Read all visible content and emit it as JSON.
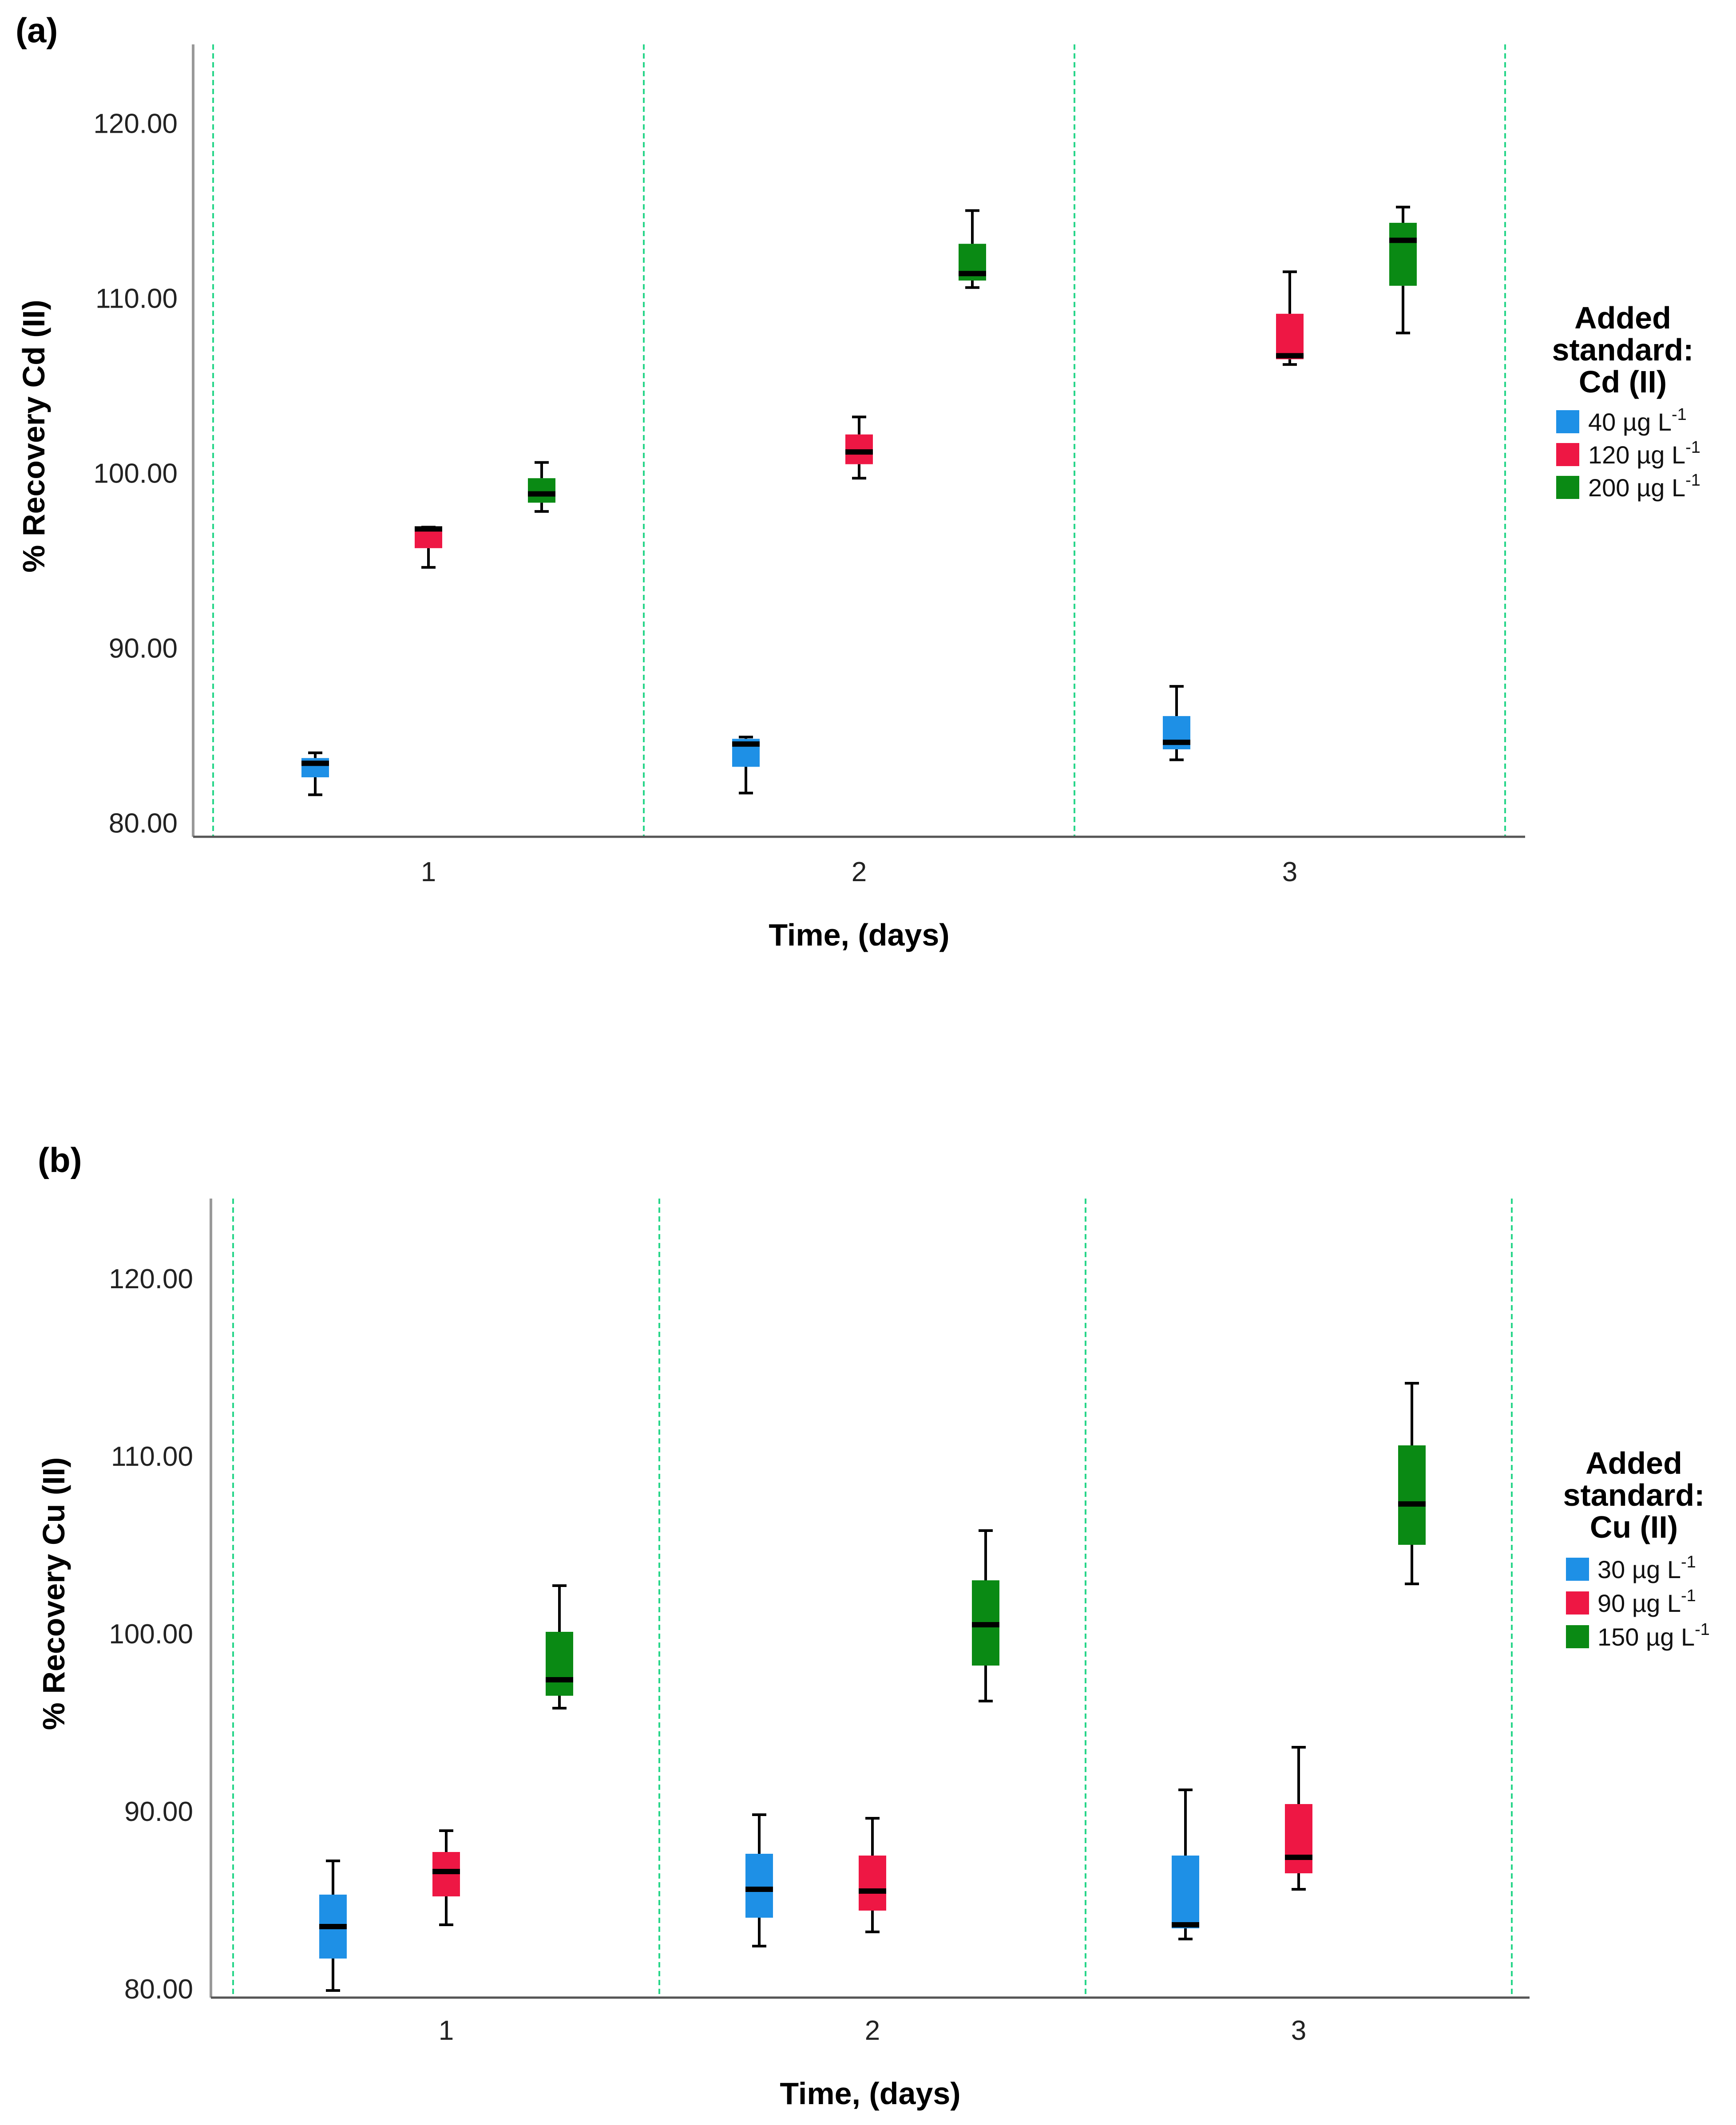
{
  "chart_data": [
    {
      "id": "a",
      "type": "boxplot",
      "panel_label": "(a)",
      "ylabel": "% Recovery Cd (II)",
      "xlabel": "Time, (days)",
      "ylim": [
        79.2,
        124.5
      ],
      "yticks": [
        80,
        90,
        100,
        110,
        120
      ],
      "ytick_labels": [
        "80.00",
        "90.00",
        "100.00",
        "110.00",
        "120.00"
      ],
      "categories": [
        "1",
        "2",
        "3"
      ],
      "legend": {
        "title_lines": [
          "Added",
          "standard:",
          "Cd (II)"
        ],
        "entries": [
          {
            "label": "40 µg L",
            "sup": "-1",
            "color": "#1e90e6"
          },
          {
            "label": "120 µg L",
            "sup": "-1",
            "color": "#ee1744"
          },
          {
            "label": "200 µg L",
            "sup": "-1",
            "color": "#0a8a14"
          }
        ]
      },
      "series": [
        {
          "name": "40 µg L-1",
          "color": "#1e90e6",
          "boxes": [
            {
              "min": 81.6,
              "q1": 82.6,
              "median": 83.4,
              "q3": 83.7,
              "max": 84.0
            },
            {
              "min": 81.7,
              "q1": 83.2,
              "median": 84.5,
              "q3": 84.8,
              "max": 84.9
            },
            {
              "min": 83.6,
              "q1": 84.2,
              "median": 84.6,
              "q3": 86.1,
              "max": 87.8
            }
          ]
        },
        {
          "name": "120 µg L-1",
          "color": "#ee1744",
          "boxes": [
            {
              "min": 94.6,
              "q1": 95.7,
              "median": 96.8,
              "q3": 96.9,
              "max": 96.9
            },
            {
              "min": 99.7,
              "q1": 100.5,
              "median": 101.2,
              "q3": 102.2,
              "max": 103.2
            },
            {
              "min": 106.2,
              "q1": 106.5,
              "median": 106.7,
              "q3": 109.1,
              "max": 111.5
            }
          ]
        },
        {
          "name": "200 µg L-1",
          "color": "#0a8a14",
          "boxes": [
            {
              "min": 97.8,
              "q1": 98.3,
              "median": 98.8,
              "q3": 99.7,
              "max": 100.6
            },
            {
              "min": 110.6,
              "q1": 111.0,
              "median": 111.4,
              "q3": 113.1,
              "max": 115.0
            },
            {
              "min": 108.0,
              "q1": 110.7,
              "median": 113.3,
              "q3": 114.3,
              "max": 115.2
            }
          ]
        }
      ]
    },
    {
      "id": "b",
      "type": "boxplot",
      "panel_label": "(b)",
      "ylabel": "% Recovery Cu (II)",
      "xlabel": "Time, (days)",
      "ylim": [
        79.5,
        124.5
      ],
      "yticks": [
        80,
        90,
        100,
        110,
        120
      ],
      "ytick_labels": [
        "80.00",
        "90.00",
        "100.00",
        "110.00",
        "120.00"
      ],
      "categories": [
        "1",
        "2",
        "3"
      ],
      "legend": {
        "title_lines": [
          "Added",
          "standard:",
          "Cu (II)"
        ],
        "entries": [
          {
            "label": "30 µg L",
            "sup": "-1",
            "color": "#1e90e6"
          },
          {
            "label": "90 µg L",
            "sup": "-1",
            "color": "#ee1744"
          },
          {
            "label": "150 µg L",
            "sup": "-1",
            "color": "#0a8a14"
          }
        ]
      },
      "series": [
        {
          "name": "30 µg L-1",
          "color": "#1e90e6",
          "boxes": [
            {
              "min": 79.9,
              "q1": 81.7,
              "median": 83.5,
              "q3": 85.3,
              "max": 87.2
            },
            {
              "min": 82.4,
              "q1": 84.0,
              "median": 85.6,
              "q3": 87.6,
              "max": 89.8
            },
            {
              "min": 82.8,
              "q1": 83.4,
              "median": 83.6,
              "q3": 87.5,
              "max": 91.2
            }
          ]
        },
        {
          "name": "90 µg L-1",
          "color": "#ee1744",
          "boxes": [
            {
              "min": 83.6,
              "q1": 85.2,
              "median": 86.6,
              "q3": 87.7,
              "max": 88.9
            },
            {
              "min": 83.2,
              "q1": 84.4,
              "median": 85.5,
              "q3": 87.5,
              "max": 89.6
            },
            {
              "min": 85.6,
              "q1": 86.5,
              "median": 87.4,
              "q3": 90.4,
              "max": 93.6
            }
          ]
        },
        {
          "name": "150 µg L-1",
          "color": "#0a8a14",
          "boxes": [
            {
              "min": 95.8,
              "q1": 96.5,
              "median": 97.4,
              "q3": 100.1,
              "max": 102.7
            },
            {
              "min": 96.2,
              "q1": 98.2,
              "median": 100.5,
              "q3": 103.0,
              "max": 105.8
            },
            {
              "min": 102.8,
              "q1": 105.0,
              "median": 107.3,
              "q3": 110.6,
              "max": 114.1
            }
          ]
        }
      ]
    }
  ]
}
